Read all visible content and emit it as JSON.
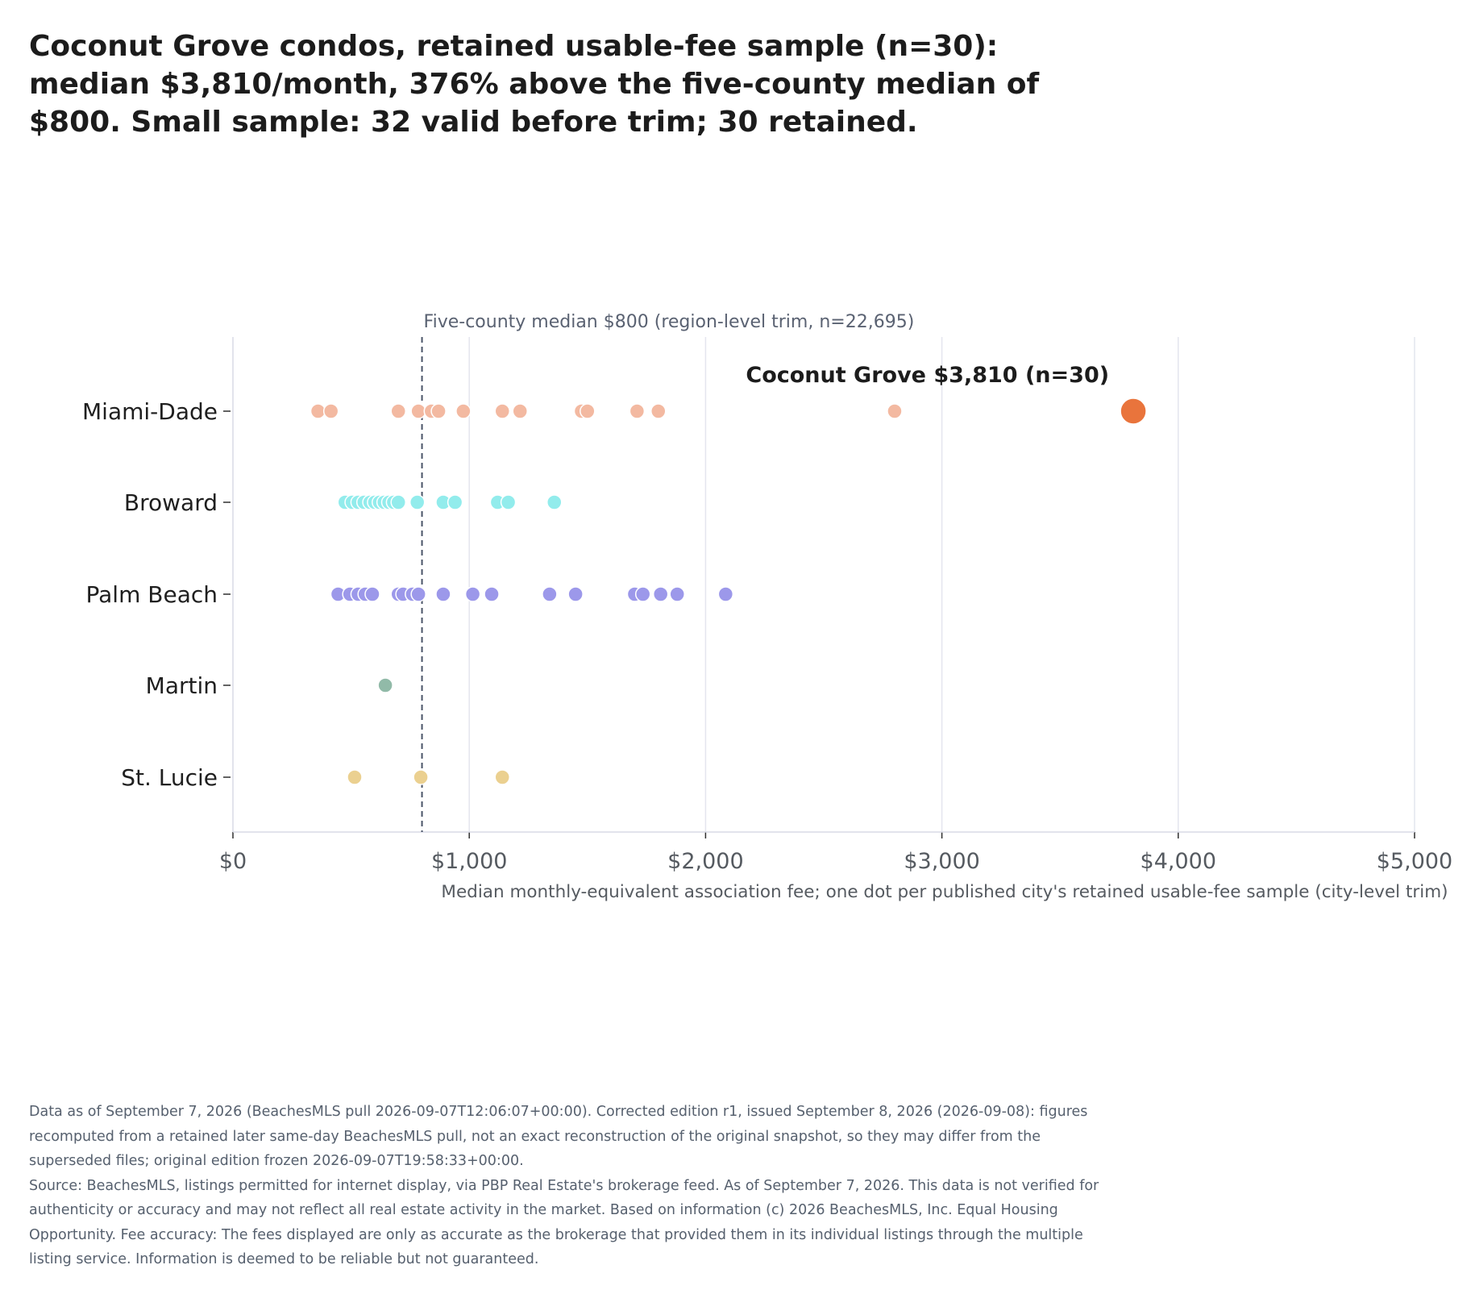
{
  "chart_data": {
    "type": "scatter",
    "title": "Coconut Grove condos, retained usable-fee sample (n=30): median $3,810/month, 376% above the five-county median of $800. Small sample: 32 valid before trim; 30 retained.",
    "xlabel": "Median monthly-equivalent association fee; one dot per published city's retained usable-fee sample (city-level trim)",
    "ylabel": "",
    "xlim": [
      0,
      5000
    ],
    "x_ticks": [
      0,
      1000,
      2000,
      3000,
      4000,
      5000
    ],
    "x_tick_labels": [
      "$0",
      "$1,000",
      "$2,000",
      "$3,000",
      "$4,000",
      "$5,000"
    ],
    "categories": [
      "Miami-Dade",
      "Broward",
      "Palm Beach",
      "Martin",
      "St. Lucie"
    ],
    "grid": "vertical",
    "series": [
      {
        "category": "Miami-Dade",
        "color": "#f3b9a1",
        "values": [
          360,
          415,
          700,
          785,
          840,
          870,
          975,
          1140,
          1215,
          1475,
          1500,
          1710,
          1800,
          2800
        ]
      },
      {
        "category": "Broward",
        "color": "#92ecec",
        "values": [
          475,
          505,
          530,
          555,
          580,
          600,
          620,
          640,
          660,
          680,
          700,
          780,
          890,
          940,
          1120,
          1165,
          1360
        ]
      },
      {
        "category": "Palm Beach",
        "color": "#9c98ea",
        "values": [
          445,
          495,
          530,
          560,
          590,
          700,
          720,
          760,
          785,
          890,
          1015,
          1095,
          1340,
          1450,
          1700,
          1735,
          1810,
          1880,
          2085
        ]
      },
      {
        "category": "Martin",
        "color": "#91baa8",
        "values": [
          645
        ]
      },
      {
        "category": "St. Lucie",
        "color": "#ebd090",
        "values": [
          515,
          795,
          1140
        ]
      }
    ],
    "highlight": {
      "category": "Miami-Dade",
      "value": 3810,
      "label": "Coconut Grove $3,810 (n=30)",
      "color": "#e9743c"
    },
    "reference_line": {
      "value": 800,
      "label": "Five-county median $800 (region-level trim, n=22,695)",
      "color": "#4a5468"
    }
  },
  "footnotes": [
    "Data as of September 7, 2026 (BeachesMLS pull 2026-09-07T12:06:07+00:00). Corrected edition r1, issued September 8, 2026 (2026-09-08): figures recomputed from a retained later same-day BeachesMLS pull, not an exact reconstruction of the original snapshot, so they may differ from the superseded files; original edition frozen 2026-09-07T19:58:33+00:00.",
    "Source: BeachesMLS, listings permitted for internet display, via PBP Real Estate's brokerage feed. As of September 7, 2026. This data is not verified for authenticity or accuracy and may not reflect all real estate activity in the market. Based on information (c) 2026 BeachesMLS, Inc. Equal Housing Opportunity. Fee accuracy: The fees displayed are only as accurate as the brokerage that provided them in its individual listings through the multiple listing service. Information is deemed to be reliable but not guaranteed."
  ]
}
